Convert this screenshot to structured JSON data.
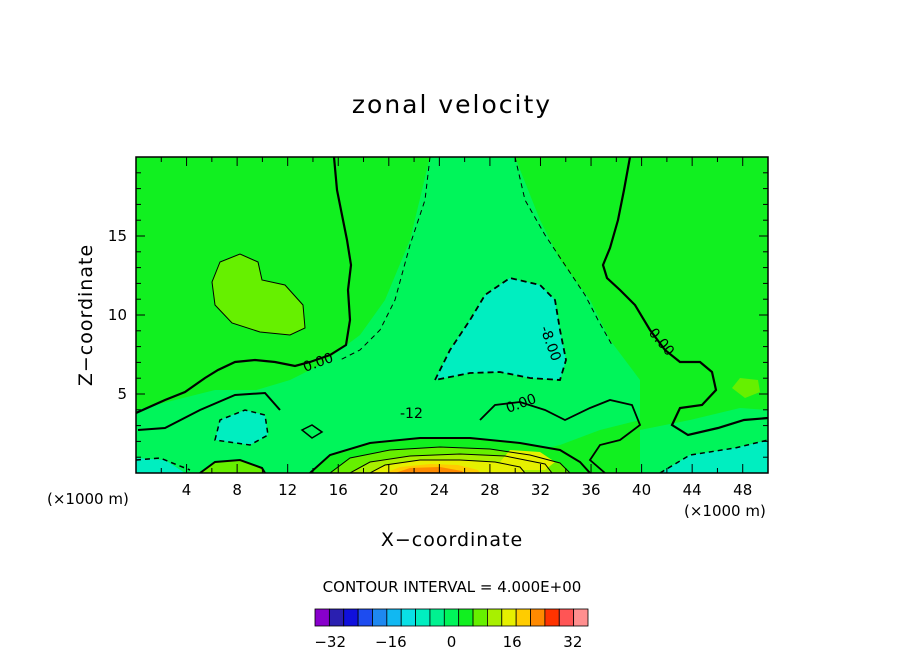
{
  "chart_data": {
    "type": "contour",
    "title": "zonal velocity",
    "xlabel": "X−coordinate",
    "ylabel": "Z−coordinate",
    "x_unit": "(×1000 m)",
    "y_unit": "(×1000 m)",
    "xlim": [
      0,
      50
    ],
    "ylim": [
      0,
      20
    ],
    "x_ticks": [
      4,
      8,
      12,
      16,
      20,
      24,
      28,
      32,
      36,
      40,
      44,
      48
    ],
    "y_ticks": [
      5,
      10,
      15
    ],
    "contour_interval_label": "CONTOUR INTERVAL =  4.000E+00",
    "contour_labels": [
      "0.00",
      "0.00",
      "0.00",
      "-8.00",
      "-12"
    ],
    "colorbar": {
      "levels": [
        -36,
        -32,
        -28,
        -24,
        -20,
        -16,
        -12,
        -8,
        -4,
        0,
        4,
        8,
        12,
        16,
        20,
        24,
        28,
        32,
        36
      ],
      "tick_labels": [
        "−32",
        "−16",
        "0",
        "16",
        "32"
      ],
      "tick_values": [
        -32,
        -16,
        0,
        16,
        32
      ],
      "colors": [
        "#8800cc",
        "#2a1fb0",
        "#1010dd",
        "#1d4cf0",
        "#1e88f0",
        "#11b8f2",
        "#0ae0e6",
        "#00eec0",
        "#00f290",
        "#00f55a",
        "#11f020",
        "#66f000",
        "#a8f000",
        "#e6f000",
        "#ffcc00",
        "#ff8a00",
        "#ff3300",
        "#ff5555",
        "#ff8f8f"
      ]
    }
  }
}
